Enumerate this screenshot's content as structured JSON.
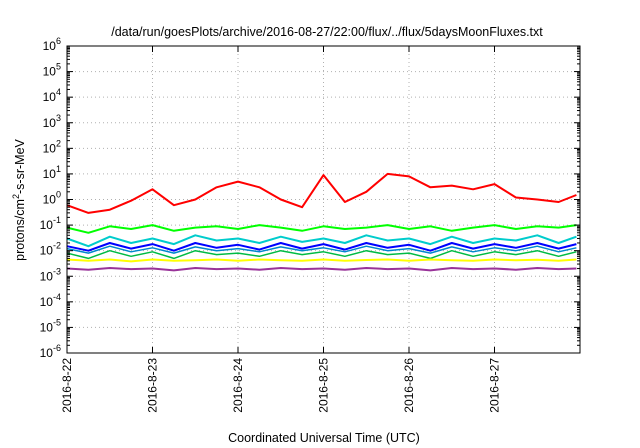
{
  "chart_data": {
    "type": "line",
    "title": "/data/run/goesPlots/archive/2016-08-27/22:00/flux/../flux/5daysMoonFluxes.txt",
    "xlabel": "Coordinated Universal Time (UTC)",
    "ylabel": {
      "prefix": "protons/cm",
      "sup": "2",
      "suffix": "-s-sr-MeV"
    },
    "y_scale": "log",
    "ylim": [
      1e-06,
      1000000.0
    ],
    "y_ticks": [
      {
        "value": 1e-06,
        "base": "10",
        "exp": "-6"
      },
      {
        "value": 1e-05,
        "base": "10",
        "exp": "-5"
      },
      {
        "value": 0.0001,
        "base": "10",
        "exp": "-4"
      },
      {
        "value": 0.001,
        "base": "10",
        "exp": "-3"
      },
      {
        "value": 0.01,
        "base": "10",
        "exp": "-2"
      },
      {
        "value": 0.1,
        "base": "10",
        "exp": "-1"
      },
      {
        "value": 1,
        "base": "10",
        "exp": "0"
      },
      {
        "value": 10.0,
        "base": "10",
        "exp": "1"
      },
      {
        "value": 100.0,
        "base": "10",
        "exp": "2"
      },
      {
        "value": 1000.0,
        "base": "10",
        "exp": "3"
      },
      {
        "value": 10000.0,
        "base": "10",
        "exp": "4"
      },
      {
        "value": 100000.0,
        "base": "10",
        "exp": "5"
      },
      {
        "value": 1000000.0,
        "base": "10",
        "exp": "6"
      }
    ],
    "xlim": [
      "2016-08-22",
      "2016-08-28"
    ],
    "x_ticks": [
      {
        "date": "2016-08-22",
        "label": "2016-8-22"
      },
      {
        "date": "2016-08-23",
        "label": "2016-8-23"
      },
      {
        "date": "2016-08-24",
        "label": "2016-8-24"
      },
      {
        "date": "2016-08-25",
        "label": "2016-8-25"
      },
      {
        "date": "2016-08-26",
        "label": "2016-8-26"
      },
      {
        "date": "2016-08-27",
        "label": "2016-8-27"
      }
    ],
    "grid": true,
    "x": [
      "2016-08-22 00:00",
      "2016-08-22 06:00",
      "2016-08-22 12:00",
      "2016-08-22 18:00",
      "2016-08-23 00:00",
      "2016-08-23 06:00",
      "2016-08-23 12:00",
      "2016-08-23 18:00",
      "2016-08-24 00:00",
      "2016-08-24 06:00",
      "2016-08-24 12:00",
      "2016-08-24 18:00",
      "2016-08-25 00:00",
      "2016-08-25 06:00",
      "2016-08-25 12:00",
      "2016-08-25 18:00",
      "2016-08-26 00:00",
      "2016-08-26 06:00",
      "2016-08-26 12:00",
      "2016-08-26 18:00",
      "2016-08-27 00:00",
      "2016-08-27 06:00",
      "2016-08-27 12:00",
      "2016-08-27 18:00",
      "2016-08-27 23:00"
    ],
    "series": [
      {
        "color": "#ff0000",
        "width": 2,
        "values": [
          0.6,
          0.3,
          0.4,
          0.9,
          2.5,
          0.6,
          1.0,
          3.0,
          5.0,
          3.0,
          1.0,
          0.5,
          9.0,
          0.8,
          2.0,
          10.0,
          8.0,
          3.0,
          3.5,
          2.5,
          4.0,
          1.2,
          1.0,
          0.8,
          1.5
        ]
      },
      {
        "color": "#00ff00",
        "width": 2,
        "values": [
          0.08,
          0.05,
          0.09,
          0.07,
          0.1,
          0.06,
          0.08,
          0.09,
          0.07,
          0.1,
          0.08,
          0.06,
          0.09,
          0.07,
          0.08,
          0.1,
          0.07,
          0.09,
          0.06,
          0.08,
          0.1,
          0.07,
          0.09,
          0.08,
          0.1
        ]
      },
      {
        "color": "#00cccc",
        "width": 2,
        "values": [
          0.03,
          0.015,
          0.035,
          0.02,
          0.03,
          0.018,
          0.04,
          0.025,
          0.03,
          0.02,
          0.035,
          0.022,
          0.03,
          0.02,
          0.04,
          0.025,
          0.03,
          0.018,
          0.035,
          0.02,
          0.03,
          0.025,
          0.04,
          0.02,
          0.035
        ]
      },
      {
        "color": "#0000ff",
        "width": 2,
        "values": [
          0.015,
          0.01,
          0.02,
          0.012,
          0.018,
          0.01,
          0.02,
          0.013,
          0.017,
          0.011,
          0.02,
          0.012,
          0.018,
          0.011,
          0.02,
          0.013,
          0.017,
          0.01,
          0.02,
          0.012,
          0.018,
          0.013,
          0.02,
          0.012,
          0.018
        ]
      },
      {
        "color": "#0088cc",
        "width": 1.5,
        "values": [
          0.012,
          0.008,
          0.015,
          0.009,
          0.013,
          0.008,
          0.014,
          0.01,
          0.012,
          0.009,
          0.014,
          0.01,
          0.013,
          0.009,
          0.015,
          0.01,
          0.012,
          0.008,
          0.014,
          0.009,
          0.013,
          0.01,
          0.015,
          0.009,
          0.013
        ]
      },
      {
        "color": "#00bb44",
        "width": 1.5,
        "values": [
          0.008,
          0.005,
          0.01,
          0.006,
          0.009,
          0.005,
          0.01,
          0.007,
          0.008,
          0.006,
          0.01,
          0.007,
          0.009,
          0.006,
          0.01,
          0.007,
          0.008,
          0.005,
          0.01,
          0.006,
          0.009,
          0.007,
          0.01,
          0.006,
          0.009
        ]
      },
      {
        "color": "#ffff00",
        "width": 2,
        "values": [
          0.0045,
          0.004,
          0.0045,
          0.0038,
          0.0045,
          0.004,
          0.0042,
          0.0045,
          0.004,
          0.0045,
          0.0042,
          0.004,
          0.0045,
          0.004,
          0.0043,
          0.0045,
          0.004,
          0.0045,
          0.0042,
          0.004,
          0.0045,
          0.0042,
          0.0044,
          0.004,
          0.0045
        ]
      },
      {
        "color": "#993399",
        "width": 2,
        "values": [
          0.002,
          0.0018,
          0.0021,
          0.0019,
          0.002,
          0.0017,
          0.0021,
          0.0019,
          0.002,
          0.0018,
          0.0021,
          0.0019,
          0.002,
          0.0018,
          0.0021,
          0.0019,
          0.002,
          0.0017,
          0.0021,
          0.0019,
          0.002,
          0.0018,
          0.0021,
          0.0019,
          0.002
        ]
      }
    ]
  }
}
